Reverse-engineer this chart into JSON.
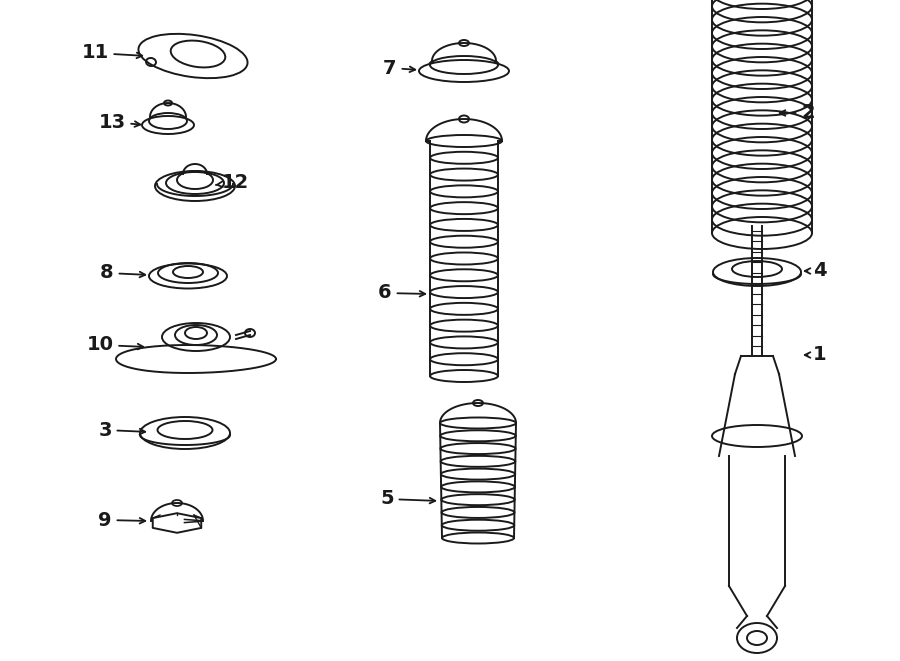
{
  "background_color": "#ffffff",
  "line_color": "#1a1a1a",
  "line_width": 1.4,
  "figsize": [
    9.0,
    6.61
  ],
  "dpi": 100
}
